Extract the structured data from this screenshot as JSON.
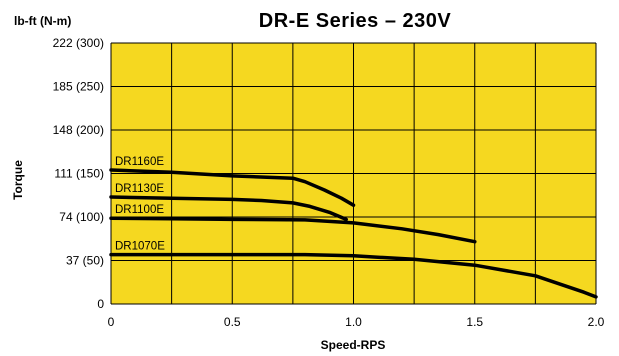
{
  "chart_data": {
    "type": "line",
    "title": "DR-E Series – 230V",
    "y_unit_label": "lb-ft  (N-m)",
    "xlabel": "Speed-RPS",
    "ylabel": "Torque",
    "xlim": [
      0,
      2.0
    ],
    "ylim": [
      0,
      222
    ],
    "x_ticks": [
      {
        "value": 0,
        "label": "0"
      },
      {
        "value": 0.5,
        "label": "0.5"
      },
      {
        "value": 1.0,
        "label": "1.0"
      },
      {
        "value": 1.5,
        "label": "1.5"
      },
      {
        "value": 2.0,
        "label": "2.0"
      }
    ],
    "y_ticks": [
      {
        "value": 0,
        "label": "0"
      },
      {
        "value": 37,
        "label": "37   (50)"
      },
      {
        "value": 74,
        "label": "74 (100)"
      },
      {
        "value": 111,
        "label": "111 (150)"
      },
      {
        "value": 148,
        "label": "148 (200)"
      },
      {
        "value": 185,
        "label": "185 (250)"
      },
      {
        "value": 222,
        "label": "222 (300)"
      }
    ],
    "grid": true,
    "colors": {
      "plot_background": "#f5d820",
      "grid": "#000000",
      "line": "#000000"
    },
    "series": [
      {
        "name": "DR1160E",
        "x": [
          0,
          0.25,
          0.5,
          0.75,
          0.8,
          0.88,
          0.95,
          1.0
        ],
        "y": [
          114,
          112,
          109,
          107,
          104,
          97,
          90,
          84
        ]
      },
      {
        "name": "DR1130E",
        "x": [
          0,
          0.25,
          0.5,
          0.62,
          0.75,
          0.82,
          0.9,
          0.97
        ],
        "y": [
          91,
          90,
          89,
          88,
          86,
          83,
          78,
          72
        ]
      },
      {
        "name": "DR1100E",
        "x": [
          0,
          0.25,
          0.5,
          0.8,
          1.0,
          1.2,
          1.35,
          1.5
        ],
        "y": [
          73,
          72.5,
          72,
          71.5,
          69,
          64,
          59,
          53
        ]
      },
      {
        "name": "DR1070E",
        "x": [
          0,
          0.25,
          0.5,
          0.8,
          1.0,
          1.25,
          1.5,
          1.75,
          1.95,
          2.0
        ],
        "y": [
          42,
          42,
          42,
          42,
          41,
          38,
          33,
          24,
          10,
          6
        ]
      }
    ]
  }
}
